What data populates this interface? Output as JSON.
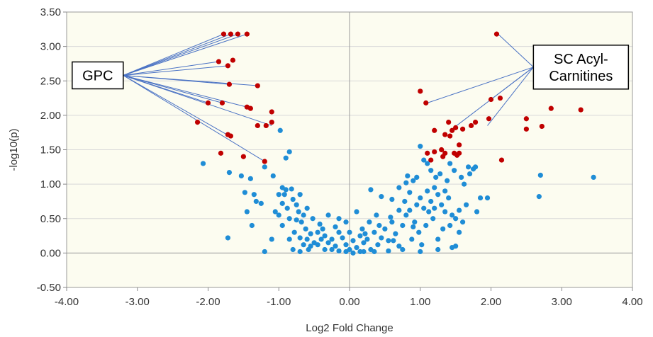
{
  "chart_data": {
    "type": "scatter",
    "xlabel": "Log2 Fold Change",
    "ylabel": "-log10(p)",
    "xlim": [
      -4,
      4
    ],
    "ylim": [
      -0.5,
      3.5
    ],
    "x_ticks": [
      "-4.00",
      "-3.00",
      "-2.00",
      "-1.00",
      "0.00",
      "1.00",
      "2.00",
      "3.00",
      "4.00"
    ],
    "y_ticks": [
      "-0.50",
      "0.00",
      "0.50",
      "1.00",
      "1.50",
      "2.00",
      "2.50",
      "3.00",
      "3.50"
    ],
    "grid": "horizontal",
    "colors": {
      "significant": "#c00000",
      "nonsignificant": "#1f8dd6",
      "leader": "#4a72c4",
      "plot_bg": "#fcfcf0"
    },
    "callouts": [
      {
        "label_lines": [
          "GPC"
        ],
        "anchor": [
          -3.2,
          2.58
        ],
        "targets": [
          [
            -1.78,
            3.18
          ],
          [
            -1.68,
            3.18
          ],
          [
            -1.58,
            3.18
          ],
          [
            -1.45,
            3.18
          ],
          [
            -1.85,
            2.78
          ],
          [
            -1.72,
            2.72
          ],
          [
            -1.7,
            2.45
          ],
          [
            -1.3,
            2.43
          ],
          [
            -2.0,
            2.18
          ],
          [
            -1.8,
            2.18
          ],
          [
            -1.45,
            2.12
          ],
          [
            -1.1,
            1.85
          ],
          [
            -1.7,
            1.7
          ],
          [
            -1.2,
            1.33
          ]
        ]
      },
      {
        "label_lines": [
          "SC Acyl-",
          "Carnitines"
        ],
        "anchor": [
          2.6,
          2.7
        ],
        "targets": [
          [
            2.1,
            3.18
          ],
          [
            1.1,
            2.18
          ],
          [
            2.0,
            2.23
          ],
          [
            1.45,
            1.8
          ],
          [
            1.95,
            1.85
          ]
        ]
      }
    ],
    "series": [
      {
        "name": "",
        "color": "significant",
        "points": [
          [
            -1.78,
            3.18
          ],
          [
            -1.68,
            3.18
          ],
          [
            -1.58,
            3.18
          ],
          [
            -1.45,
            3.18
          ],
          [
            -1.85,
            2.78
          ],
          [
            -1.65,
            2.8
          ],
          [
            -1.72,
            2.72
          ],
          [
            -1.7,
            2.45
          ],
          [
            -1.3,
            2.43
          ],
          [
            -2.0,
            2.18
          ],
          [
            -1.8,
            2.18
          ],
          [
            -1.45,
            2.12
          ],
          [
            -1.4,
            2.1
          ],
          [
            -1.1,
            2.05
          ],
          [
            -1.1,
            1.9
          ],
          [
            -1.3,
            1.85
          ],
          [
            -1.18,
            1.85
          ],
          [
            -2.15,
            1.9
          ],
          [
            -1.72,
            1.72
          ],
          [
            -1.68,
            1.7
          ],
          [
            -1.82,
            1.45
          ],
          [
            -1.5,
            1.4
          ],
          [
            -1.2,
            1.33
          ],
          [
            1.0,
            2.35
          ],
          [
            1.08,
            2.18
          ],
          [
            2.08,
            3.18
          ],
          [
            2.0,
            2.23
          ],
          [
            2.13,
            2.25
          ],
          [
            2.85,
            2.1
          ],
          [
            3.27,
            2.08
          ],
          [
            1.97,
            1.95
          ],
          [
            2.5,
            1.95
          ],
          [
            2.5,
            1.8
          ],
          [
            2.72,
            1.84
          ],
          [
            1.4,
            1.9
          ],
          [
            1.2,
            1.78
          ],
          [
            1.35,
            1.72
          ],
          [
            1.42,
            1.7
          ],
          [
            1.5,
            1.82
          ],
          [
            1.45,
            1.78
          ],
          [
            1.6,
            1.8
          ],
          [
            1.72,
            1.85
          ],
          [
            1.78,
            1.9
          ],
          [
            1.55,
            1.57
          ],
          [
            1.3,
            1.5
          ],
          [
            1.35,
            1.45
          ],
          [
            1.32,
            1.4
          ],
          [
            1.48,
            1.45
          ],
          [
            1.55,
            1.45
          ],
          [
            1.52,
            1.42
          ],
          [
            1.2,
            1.47
          ],
          [
            1.1,
            1.45
          ],
          [
            1.15,
            1.35
          ],
          [
            2.15,
            1.35
          ]
        ]
      },
      {
        "name": "",
        "color": "nonsignificant",
        "points": [
          [
            -2.07,
            1.3
          ],
          [
            -1.7,
            1.17
          ],
          [
            -1.53,
            1.12
          ],
          [
            -1.4,
            1.08
          ],
          [
            -1.48,
            0.88
          ],
          [
            -1.35,
            0.85
          ],
          [
            -1.45,
            0.6
          ],
          [
            -1.32,
            0.75
          ],
          [
            -1.25,
            0.72
          ],
          [
            -1.72,
            0.22
          ],
          [
            -1.2,
            0.02
          ],
          [
            -1.38,
            0.4
          ],
          [
            -1.2,
            1.25
          ],
          [
            -0.98,
            1.78
          ],
          [
            -0.85,
            1.47
          ],
          [
            -0.9,
            1.38
          ],
          [
            -1.08,
            1.12
          ],
          [
            -0.95,
            0.95
          ],
          [
            -0.9,
            0.92
          ],
          [
            -0.82,
            0.93
          ],
          [
            -1.0,
            0.85
          ],
          [
            -0.92,
            0.85
          ],
          [
            -0.8,
            0.78
          ],
          [
            -0.75,
            0.7
          ],
          [
            -0.88,
            0.65
          ],
          [
            -1.05,
            0.6
          ],
          [
            -1.0,
            0.55
          ],
          [
            -0.72,
            0.6
          ],
          [
            -0.65,
            0.55
          ],
          [
            -0.85,
            0.5
          ],
          [
            -0.95,
            0.4
          ],
          [
            -0.68,
            0.45
          ],
          [
            -0.62,
            0.35
          ],
          [
            -0.78,
            0.3
          ],
          [
            -0.7,
            0.22
          ],
          [
            -0.6,
            0.2
          ],
          [
            -0.55,
            0.28
          ],
          [
            -0.5,
            0.15
          ],
          [
            -0.45,
            0.3
          ],
          [
            -0.4,
            0.2
          ],
          [
            -0.35,
            0.25
          ],
          [
            -0.3,
            0.15
          ],
          [
            -0.25,
            0.2
          ],
          [
            -0.2,
            0.1
          ],
          [
            -0.15,
            0.3
          ],
          [
            -0.1,
            0.22
          ],
          [
            -0.05,
            0.12
          ],
          [
            0.0,
            0.05
          ],
          [
            0.05,
            0.18
          ],
          [
            0.1,
            0.08
          ],
          [
            0.15,
            0.25
          ],
          [
            0.2,
            0.15
          ],
          [
            0.25,
            0.2
          ],
          [
            0.3,
            0.05
          ],
          [
            0.35,
            0.3
          ],
          [
            0.4,
            0.12
          ],
          [
            0.45,
            0.22
          ],
          [
            0.5,
            0.35
          ],
          [
            0.55,
            0.18
          ],
          [
            0.6,
            0.45
          ],
          [
            0.65,
            0.28
          ],
          [
            0.7,
            0.1
          ],
          [
            0.75,
            0.4
          ],
          [
            0.8,
            0.55
          ],
          [
            0.85,
            0.62
          ],
          [
            0.9,
            0.38
          ],
          [
            0.95,
            0.7
          ],
          [
            1.0,
            0.8
          ],
          [
            1.05,
            0.65
          ],
          [
            1.1,
            0.9
          ],
          [
            1.15,
            0.75
          ],
          [
            1.2,
            0.95
          ],
          [
            1.25,
            0.85
          ],
          [
            1.3,
            0.7
          ],
          [
            1.35,
            0.6
          ],
          [
            1.4,
            0.8
          ],
          [
            1.45,
            0.55
          ],
          [
            1.5,
            0.5
          ],
          [
            1.55,
            0.62
          ],
          [
            1.6,
            0.45
          ],
          [
            1.65,
            0.7
          ],
          [
            1.7,
            1.15
          ],
          [
            1.75,
            1.22
          ],
          [
            1.8,
            0.6
          ],
          [
            1.85,
            0.8
          ],
          [
            1.95,
            0.8
          ],
          [
            2.7,
            1.13
          ],
          [
            3.45,
            1.1
          ],
          [
            2.68,
            0.82
          ],
          [
            1.5,
            0.1
          ],
          [
            1.45,
            0.08
          ],
          [
            1.25,
            0.05
          ],
          [
            1.0,
            0.02
          ],
          [
            0.75,
            0.05
          ],
          [
            0.55,
            0.03
          ],
          [
            0.35,
            0.02
          ],
          [
            0.2,
            0.02
          ],
          [
            0.05,
            0.0
          ],
          [
            -0.15,
            0.03
          ],
          [
            -0.35,
            0.05
          ],
          [
            -0.55,
            0.1
          ],
          [
            -0.7,
            0.02
          ],
          [
            -0.8,
            0.05
          ],
          [
            -0.85,
            0.2
          ],
          [
            -0.3,
            0.55
          ],
          [
            -0.15,
            0.5
          ],
          [
            -0.05,
            0.45
          ],
          [
            0.1,
            0.6
          ],
          [
            0.3,
            0.92
          ],
          [
            0.45,
            0.82
          ],
          [
            0.6,
            0.78
          ],
          [
            0.7,
            0.95
          ],
          [
            0.8,
            1.02
          ],
          [
            0.9,
            1.05
          ],
          [
            0.95,
            1.1
          ],
          [
            1.0,
            1.55
          ],
          [
            1.05,
            1.35
          ],
          [
            1.1,
            1.3
          ],
          [
            1.15,
            1.2
          ],
          [
            1.22,
            1.1
          ],
          [
            1.28,
            1.15
          ],
          [
            1.38,
            1.05
          ],
          [
            1.42,
            1.3
          ],
          [
            1.48,
            1.2
          ],
          [
            1.58,
            1.1
          ],
          [
            1.62,
            1.0
          ],
          [
            1.68,
            1.25
          ],
          [
            1.78,
            1.25
          ],
          [
            0.85,
            0.88
          ],
          [
            0.92,
            0.45
          ],
          [
            0.98,
            0.3
          ],
          [
            1.08,
            0.4
          ],
          [
            1.18,
            0.5
          ],
          [
            1.32,
            0.35
          ],
          [
            1.42,
            0.4
          ],
          [
            0.88,
            0.2
          ],
          [
            0.62,
            0.18
          ],
          [
            0.42,
            0.4
          ],
          [
            0.28,
            0.45
          ],
          [
            0.18,
            0.35
          ],
          [
            0.0,
            0.3
          ],
          [
            -0.2,
            0.38
          ],
          [
            -0.42,
            0.42
          ],
          [
            -0.58,
            0.05
          ],
          [
            -0.52,
            0.5
          ],
          [
            -0.6,
            0.65
          ],
          [
            -0.7,
            0.85
          ],
          [
            -1.1,
            0.2
          ],
          [
            -0.45,
            0.12
          ],
          [
            0.22,
            0.28
          ],
          [
            0.7,
            0.62
          ],
          [
            1.25,
            0.2
          ],
          [
            1.55,
            0.3
          ],
          [
            1.02,
            0.12
          ],
          [
            1.12,
            0.6
          ],
          [
            0.78,
            0.75
          ],
          [
            0.58,
            0.52
          ],
          [
            0.38,
            0.55
          ],
          [
            0.15,
            0.02
          ],
          [
            -0.05,
            0.02
          ],
          [
            -0.25,
            0.05
          ],
          [
            -0.38,
            0.35
          ],
          [
            -0.65,
            0.12
          ],
          [
            -0.95,
            0.72
          ],
          [
            -0.75,
            0.48
          ],
          [
            0.82,
            1.12
          ],
          [
            1.2,
            0.65
          ],
          [
            1.35,
            0.9
          ]
        ]
      }
    ]
  }
}
